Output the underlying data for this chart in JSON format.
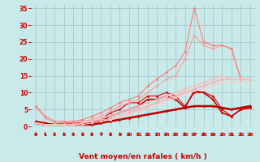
{
  "background_color": "#c8eaea",
  "grid_color": "#a8c8c8",
  "xlabel": "Vent moyen/en rafales ( km/h )",
  "xlabel_color": "#cc0000",
  "tick_color": "#cc0000",
  "xlim": [
    -0.5,
    23.5
  ],
  "ylim": [
    0,
    36
  ],
  "yticks": [
    0,
    5,
    10,
    15,
    20,
    25,
    30,
    35
  ],
  "xticks": [
    0,
    1,
    2,
    3,
    4,
    5,
    6,
    7,
    8,
    9,
    10,
    11,
    12,
    13,
    14,
    15,
    16,
    17,
    18,
    19,
    20,
    21,
    22,
    23
  ],
  "series": [
    {
      "x": [
        0,
        1,
        2,
        3,
        4,
        5,
        6,
        7,
        8,
        9,
        10,
        11,
        12,
        13,
        14,
        15,
        16,
        17,
        18,
        19,
        20,
        21,
        22,
        23
      ],
      "y": [
        1.5,
        1,
        0.5,
        1,
        1,
        1,
        1,
        2,
        4,
        5,
        7,
        7,
        9,
        9,
        10,
        9,
        6,
        10,
        10,
        9,
        5,
        3,
        5,
        5.5
      ],
      "color": "#dd0000",
      "alpha": 1.0,
      "lw": 0.8,
      "marker": "D",
      "ms": 1.5
    },
    {
      "x": [
        0,
        1,
        2,
        3,
        4,
        5,
        6,
        7,
        8,
        9,
        10,
        11,
        12,
        13,
        14,
        15,
        16,
        17,
        18,
        19,
        20,
        21,
        22,
        23
      ],
      "y": [
        1.5,
        1,
        0.5,
        1,
        1,
        1,
        1,
        1.5,
        3,
        4,
        5,
        6,
        8,
        8,
        9,
        8,
        5.5,
        10.5,
        10,
        8,
        4,
        3,
        5,
        5.5
      ],
      "color": "#cc0000",
      "alpha": 1.0,
      "lw": 1.2,
      "marker": "D",
      "ms": 1.5
    },
    {
      "x": [
        0,
        1,
        2,
        3,
        4,
        5,
        6,
        7,
        8,
        9,
        10,
        11,
        12,
        13,
        14,
        15,
        16,
        17,
        18,
        19,
        20,
        21,
        22,
        23
      ],
      "y": [
        1,
        0.5,
        0.5,
        0.5,
        0.5,
        0.5,
        0.5,
        1,
        1.5,
        2,
        2.5,
        3,
        3.5,
        4,
        4.5,
        5,
        5.5,
        6,
        6,
        6,
        5.5,
        5,
        5.5,
        6
      ],
      "color": "#bb0000",
      "alpha": 1.0,
      "lw": 1.8,
      "marker": "D",
      "ms": 1.5
    },
    {
      "x": [
        0,
        1,
        2,
        3,
        4,
        5,
        6,
        7,
        8,
        9,
        10,
        11,
        12,
        13,
        14,
        15,
        16,
        17,
        18,
        19,
        20,
        21,
        22,
        23
      ],
      "y": [
        6,
        2.5,
        1,
        1,
        1,
        1.5,
        2,
        3,
        4.5,
        6,
        7,
        8,
        10,
        12,
        14,
        15,
        20,
        27,
        24,
        23,
        24,
        23,
        14,
        14
      ],
      "color": "#ff9999",
      "alpha": 1.0,
      "lw": 0.8,
      "marker": "D",
      "ms": 1.5
    },
    {
      "x": [
        0,
        1,
        2,
        3,
        4,
        5,
        6,
        7,
        8,
        9,
        10,
        11,
        12,
        13,
        14,
        15,
        16,
        17,
        18,
        19,
        20,
        21,
        22,
        23
      ],
      "y": [
        6,
        3,
        1.5,
        1.5,
        1.5,
        2,
        3,
        4,
        5.5,
        7,
        8,
        9,
        12,
        14,
        16,
        18,
        22,
        35,
        25,
        24,
        24,
        23,
        14,
        14
      ],
      "color": "#ff7777",
      "alpha": 1.0,
      "lw": 0.8,
      "marker": "D",
      "ms": 1.5
    },
    {
      "x": [
        0,
        1,
        2,
        3,
        4,
        5,
        6,
        7,
        8,
        9,
        10,
        11,
        12,
        13,
        14,
        15,
        16,
        17,
        18,
        19,
        20,
        21,
        22,
        23
      ],
      "y": [
        1,
        0.5,
        0.5,
        0.5,
        0.5,
        1,
        1.5,
        2,
        2,
        3,
        4,
        5,
        6,
        7,
        8,
        9,
        10,
        11,
        12,
        13,
        14,
        14,
        14,
        14
      ],
      "color": "#ffaaaa",
      "alpha": 1.0,
      "lw": 1.0,
      "marker": "D",
      "ms": 1.5
    },
    {
      "x": [
        0,
        1,
        2,
        3,
        4,
        5,
        6,
        7,
        8,
        9,
        10,
        11,
        12,
        13,
        14,
        15,
        16,
        17,
        18,
        19,
        20,
        21,
        22,
        23
      ],
      "y": [
        1,
        0.5,
        0.5,
        0.5,
        0.5,
        1,
        1.5,
        2.5,
        3,
        4,
        5,
        6,
        7,
        8,
        9,
        10,
        11,
        12,
        13,
        14,
        15,
        14,
        14,
        14
      ],
      "color": "#ffbbbb",
      "alpha": 1.0,
      "lw": 1.0,
      "marker": "D",
      "ms": 1.5
    },
    {
      "x": [
        0,
        1,
        2,
        3,
        4,
        5,
        6,
        7,
        8,
        9,
        10,
        11,
        12,
        13,
        14,
        15,
        16,
        17,
        18,
        19,
        20,
        21,
        22,
        23
      ],
      "y": [
        1,
        0.5,
        0.5,
        0.5,
        0.5,
        0.5,
        1,
        1.5,
        2,
        3,
        3.5,
        4.5,
        5.5,
        6.5,
        7.5,
        8.5,
        9.5,
        10.5,
        11,
        12,
        13,
        13,
        13,
        13
      ],
      "color": "#ffcccc",
      "alpha": 1.0,
      "lw": 0.8,
      "marker": "D",
      "ms": 1.2
    }
  ],
  "arrow_color": "#cc0000"
}
